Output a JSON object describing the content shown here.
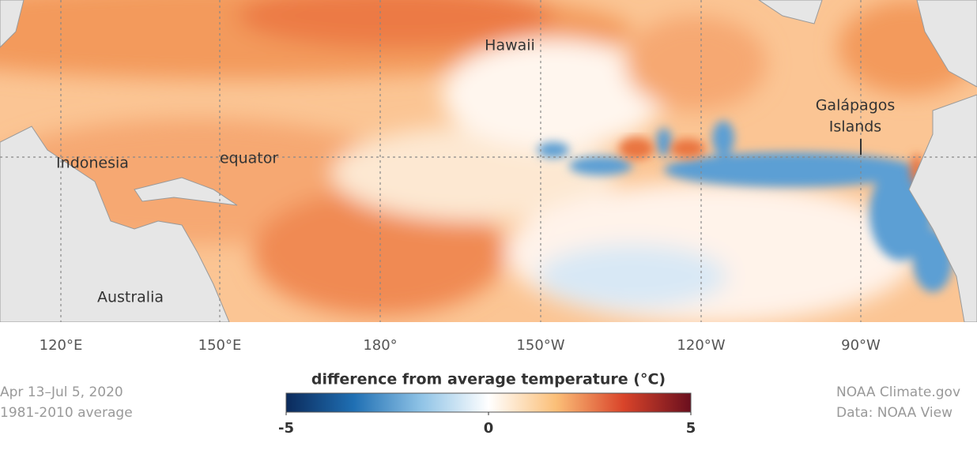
{
  "map": {
    "place_labels": [
      {
        "lines": [
          "Hawaii"
        ]
      },
      {
        "lines": [
          "Indonesia"
        ]
      },
      {
        "lines": [
          "equator"
        ]
      },
      {
        "lines": [
          "Australia"
        ]
      },
      {
        "lines": [
          "Galápagos",
          "Islands"
        ]
      }
    ],
    "longitude_labels": [
      "120°E",
      "150°E",
      "180°",
      "150°W",
      "120°W",
      "90°W"
    ]
  },
  "colorbar": {
    "title": "difference from average temperature (°C)",
    "lim": [
      -5,
      5
    ],
    "ticks": [
      -5,
      0,
      5
    ],
    "colors": [
      "#0b2a5b",
      "#1f6fb3",
      "#8fc3e6",
      "#ffffff",
      "#fbbf78",
      "#d9442a",
      "#6a0f1e"
    ]
  },
  "footer": {
    "left": [
      "Apr 13–Jul 5, 2020",
      "1981-2010 average"
    ],
    "right": [
      "NOAA Climate.gov",
      "Data: NOAA View"
    ]
  }
}
